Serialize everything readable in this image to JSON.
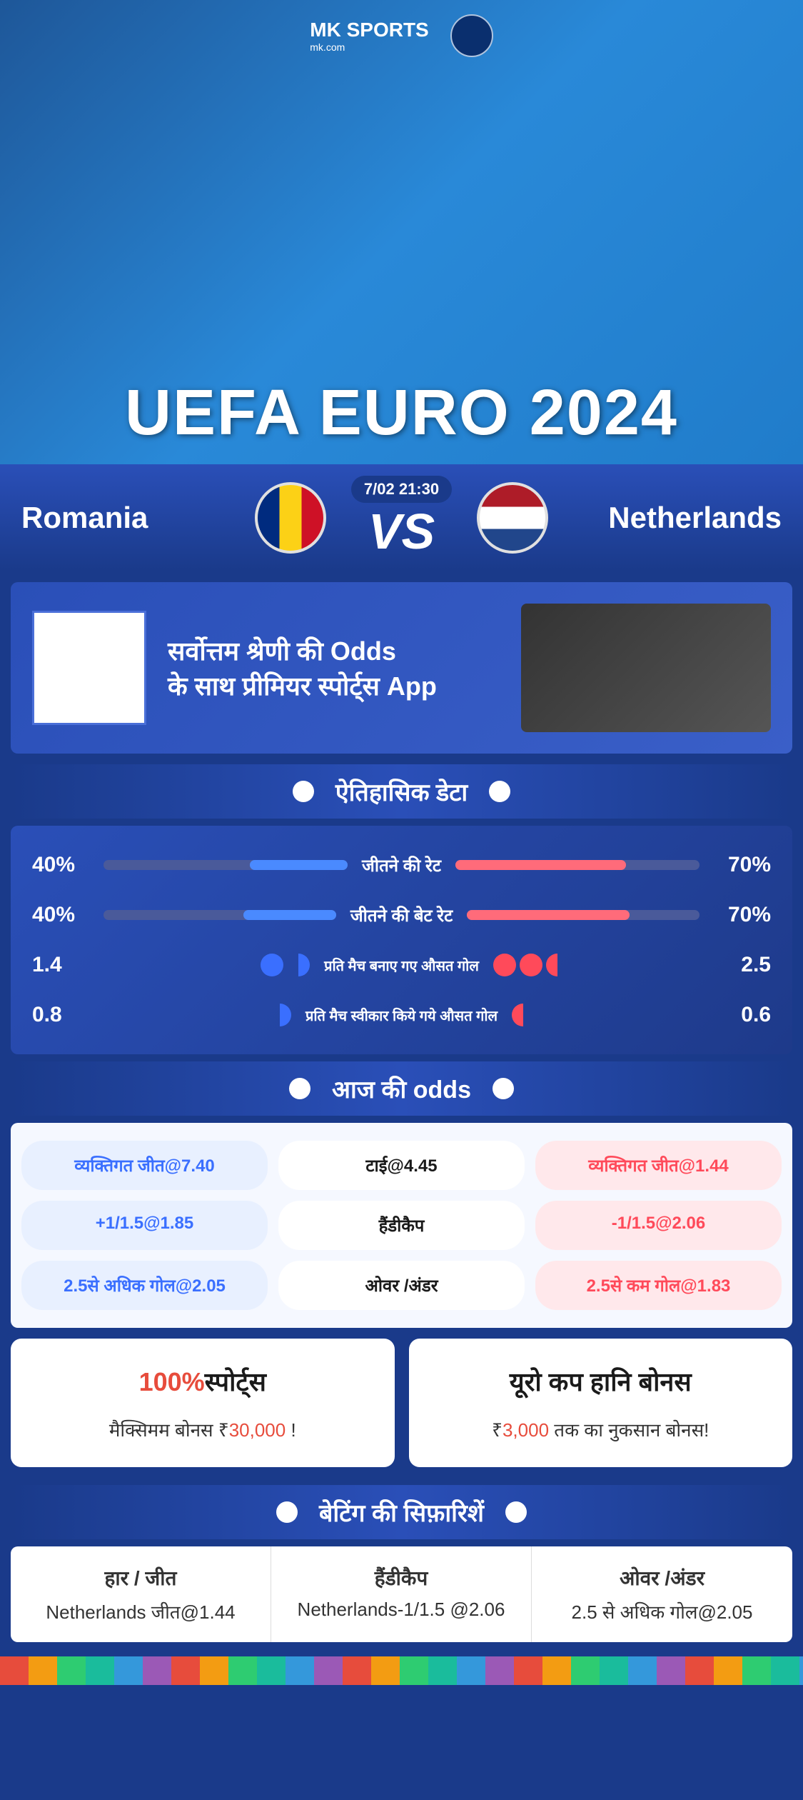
{
  "brand": {
    "name": "MK",
    "tag": "SPORTS",
    "sub": "mk.com"
  },
  "hero_title": "UEFA EURO 2024",
  "match": {
    "team1": "Romania",
    "team2": "Netherlands",
    "time": "7/02 21:30",
    "vs": "VS"
  },
  "promo": {
    "line1": "सर्वोत्तम श्रेणी की Odds",
    "line2": "के साथ प्रीमियर स्पोर्ट्स App"
  },
  "sections": {
    "historical": "ऐतिहासिक डेटा",
    "odds": "आज की odds",
    "recommendations": "बेटिंग की सिफ़ारिशें"
  },
  "historical": {
    "rows": [
      {
        "left_val": "40%",
        "label": "जीतने की रेट",
        "right_val": "70%",
        "left_fill": 40,
        "right_fill": 70,
        "type": "bar"
      },
      {
        "left_val": "40%",
        "label": "जीतने की बेट रेट",
        "right_val": "70%",
        "left_fill": 40,
        "right_fill": 70,
        "type": "bar"
      },
      {
        "left_val": "1.4",
        "label": "प्रति मैच बनाए गए औसत गोल",
        "right_val": "2.5",
        "left_goals": 1.4,
        "right_goals": 2.5,
        "type": "goals"
      },
      {
        "left_val": "0.8",
        "label": "प्रति मैच स्वीकार किये गये औसत गोल",
        "right_val": "0.6",
        "left_goals": 0.8,
        "right_goals": 0.6,
        "type": "goals"
      }
    ]
  },
  "odds": [
    {
      "left": "व्यक्तिगत जीत@7.40",
      "center": "टाई@4.45",
      "right": "व्यक्तिगत जीत@1.44"
    },
    {
      "left": "+1/1.5@1.85",
      "center": "हैंडीकैप",
      "right": "-1/1.5@2.06"
    },
    {
      "left": "2.5से अधिक गोल@2.05",
      "center": "ओवर /अंडर",
      "right": "2.5से कम गोल@1.83"
    }
  ],
  "bonuses": [
    {
      "title_red": "100%",
      "title_rest": "स्पोर्ट्स",
      "sub_pre": "मैक्सिमम बोनस  ₹",
      "sub_red": "30,000",
      "sub_post": " !"
    },
    {
      "title_red": "",
      "title_rest": "यूरो कप हानि बोनस",
      "sub_pre": "₹",
      "sub_red": "3,000",
      "sub_post": " तक का नुकसान बोनस!"
    }
  ],
  "recommendations": [
    {
      "label": "हार / जीत",
      "value": "Netherlands जीत@1.44"
    },
    {
      "label": "हैंडीकैप",
      "value": "Netherlands-1/1.5 @2.06"
    },
    {
      "label": "ओवर /अंडर",
      "value": "2.5 से अधिक गोल@2.05"
    }
  ],
  "colors": {
    "blue_accent": "#3a6fff",
    "red_accent": "#ff4a5a",
    "bg_primary": "#1a3a8a"
  }
}
